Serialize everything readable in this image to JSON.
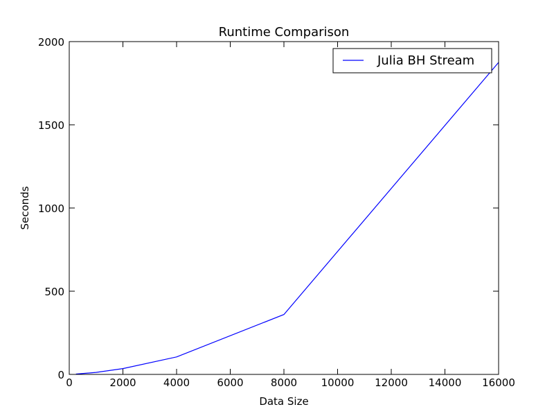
{
  "chart_data": {
    "type": "line",
    "title": "Runtime Comparison",
    "xlabel": "Data Size",
    "ylabel": "Seconds",
    "xlim": [
      0,
      16000
    ],
    "ylim": [
      0,
      2000
    ],
    "xticks": [
      0,
      2000,
      4000,
      6000,
      8000,
      10000,
      12000,
      14000,
      16000
    ],
    "xtick_labels": [
      "0",
      "2000",
      "4000",
      "6000",
      "8000",
      "10000",
      "12000",
      "14000",
      "16000"
    ],
    "yticks": [
      0,
      500,
      1000,
      1500,
      2000
    ],
    "ytick_labels": [
      "0",
      "500",
      "1000",
      "1500",
      "2000"
    ],
    "grid": false,
    "legend_position": "top-right",
    "series": [
      {
        "name": "Julia BH Stream",
        "color": "#0000ff",
        "x": [
          250,
          1000,
          2000,
          4000,
          8000,
          16000
        ],
        "y": [
          2,
          12,
          35,
          105,
          360,
          1875
        ]
      }
    ]
  }
}
